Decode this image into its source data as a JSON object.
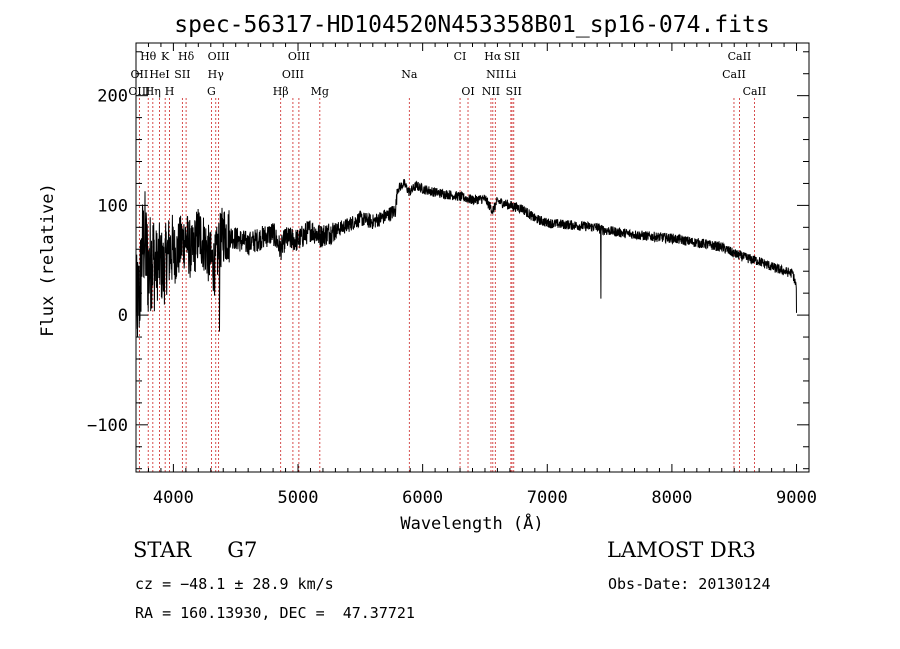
{
  "chart_data": {
    "type": "line",
    "title": "spec-56317-HD104520N453358B01_sp16-074.fits",
    "xlabel": "Wavelength (Å)",
    "ylabel": "Flux (relative)",
    "xlim": [
      3700,
      9100
    ],
    "ylim": [
      -143,
      248
    ],
    "xticks": [
      4000,
      5000,
      6000,
      7000,
      8000,
      9000
    ],
    "xtick_labels": [
      "4000",
      "5000",
      "6000",
      "7000",
      "8000",
      "9000"
    ],
    "yticks": [
      -100,
      0,
      100,
      200
    ],
    "ytick_labels": [
      "−100",
      "0",
      "100",
      "200"
    ],
    "series": [
      {
        "name": "spectrum",
        "anchors": [
          [
            3700,
            5
          ],
          [
            3730,
            20
          ],
          [
            3750,
            60
          ],
          [
            3770,
            70
          ],
          [
            3800,
            40
          ],
          [
            3830,
            55
          ],
          [
            3860,
            45
          ],
          [
            3890,
            50
          ],
          [
            3920,
            40
          ],
          [
            3950,
            55
          ],
          [
            3980,
            60
          ],
          [
            4020,
            55
          ],
          [
            4060,
            65
          ],
          [
            4100,
            70
          ],
          [
            4150,
            55
          ],
          [
            4200,
            75
          ],
          [
            4250,
            65
          ],
          [
            4300,
            50
          ],
          [
            4330,
            45
          ],
          [
            4360,
            60
          ],
          [
            4400,
            75
          ],
          [
            4500,
            70
          ],
          [
            4600,
            65
          ],
          [
            4700,
            70
          ],
          [
            4800,
            75
          ],
          [
            4860,
            60
          ],
          [
            4900,
            70
          ],
          [
            5000,
            68
          ],
          [
            5100,
            78
          ],
          [
            5180,
            72
          ],
          [
            5250,
            75
          ],
          [
            5400,
            82
          ],
          [
            5500,
            88
          ],
          [
            5600,
            85
          ],
          [
            5700,
            90
          ],
          [
            5780,
            95
          ],
          [
            5800,
            115
          ],
          [
            5850,
            120
          ],
          [
            5893,
            112
          ],
          [
            5950,
            118
          ],
          [
            6000,
            115
          ],
          [
            6100,
            112
          ],
          [
            6200,
            110
          ],
          [
            6300,
            108
          ],
          [
            6400,
            105
          ],
          [
            6500,
            106
          ],
          [
            6563,
            95
          ],
          [
            6600,
            104
          ],
          [
            6700,
            100
          ],
          [
            6800,
            97
          ],
          [
            6900,
            88
          ],
          [
            7000,
            84
          ],
          [
            7200,
            82
          ],
          [
            7400,
            80
          ],
          [
            7430,
            78
          ],
          [
            7600,
            75
          ],
          [
            7800,
            72
          ],
          [
            8000,
            70
          ],
          [
            8200,
            66
          ],
          [
            8400,
            62
          ],
          [
            8500,
            56
          ],
          [
            8600,
            52
          ],
          [
            8700,
            49
          ],
          [
            8800,
            44
          ],
          [
            8900,
            40
          ],
          [
            8970,
            38
          ],
          [
            9000,
            25
          ]
        ],
        "notes": "Noisy continuum; very high noise below ~4400 A (scatter roughly -60..+170), moderate scatter (~+-10) redward. Sharp spikes: ~7430 A dip to ~15, ~4370 A dip to ~-15."
      }
    ],
    "lines": [
      {
        "label": "Hθ",
        "x": 3798,
        "row": 1
      },
      {
        "label": "K",
        "x": 3934,
        "row": 1
      },
      {
        "label": "Hδ",
        "x": 4102,
        "row": 1
      },
      {
        "label": "OIII",
        "x": 4363,
        "row": 1
      },
      {
        "label": "OIII",
        "x": 5007,
        "row": 1
      },
      {
        "label": "CI",
        "x": 6300,
        "row": 1
      },
      {
        "label": "Hα",
        "x": 6563,
        "row": 1
      },
      {
        "label": "SII",
        "x": 6717,
        "row": 1
      },
      {
        "label": "CaII",
        "x": 8542,
        "row": 1
      },
      {
        "label": "OII",
        "x": 3727,
        "row": 2
      },
      {
        "label": "HeI",
        "x": 3889,
        "row": 2
      },
      {
        "label": "SII",
        "x": 4072,
        "row": 2
      },
      {
        "label": "Hγ",
        "x": 4340,
        "row": 2
      },
      {
        "label": "OIII",
        "x": 4959,
        "row": 2
      },
      {
        "label": "Na",
        "x": 5893,
        "row": 2
      },
      {
        "label": "NII",
        "x": 6583,
        "row": 2
      },
      {
        "label": "Li",
        "x": 6708,
        "row": 2
      },
      {
        "label": "CaII",
        "x": 8498,
        "row": 2
      },
      {
        "label": "OIII",
        "x": 3727,
        "row": 3
      },
      {
        "label": "Hη",
        "x": 3835,
        "row": 3
      },
      {
        "label": "H",
        "x": 3969,
        "row": 3
      },
      {
        "label": "G",
        "x": 4305,
        "row": 3
      },
      {
        "label": "Hβ",
        "x": 4861,
        "row": 3
      },
      {
        "label": "Mg",
        "x": 5175,
        "row": 3
      },
      {
        "label": "OI",
        "x": 6364,
        "row": 3
      },
      {
        "label": "NII",
        "x": 6548,
        "row": 3
      },
      {
        "label": "SII",
        "x": 6731,
        "row": 3
      },
      {
        "label": "CaII",
        "x": 8662,
        "row": 3
      }
    ]
  },
  "info": {
    "object_type": "STAR",
    "subclass": "G7",
    "cz": "cz = −48.1 ± 28.9 km/s",
    "radec": "RA = 160.13930, DEC =  47.37721",
    "survey": "LAMOST DR3",
    "obs_date": "Obs-Date: 20130124"
  },
  "colors": {
    "line_marker": "#cc2222",
    "spectrum": "#000000",
    "axes": "#000000",
    "background": "#ffffff"
  }
}
